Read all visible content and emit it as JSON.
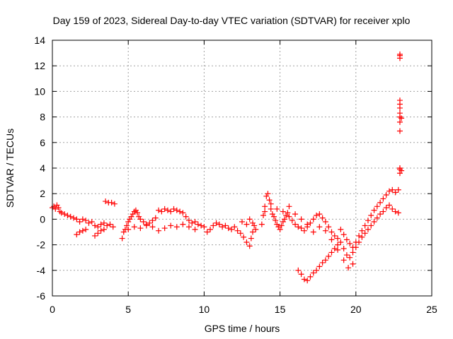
{
  "chart_data": {
    "type": "scatter",
    "title": "Day 159 of 2023, Sidereal Day-to-day VTEC variation (SDTVAR) for receiver xplo",
    "xlabel": "GPS time / hours",
    "ylabel": "SDTVAR / TECUs",
    "xlim": [
      0,
      25
    ],
    "ylim": [
      -6,
      14
    ],
    "xticks": [
      "0",
      "5",
      "10",
      "15",
      "20",
      "25"
    ],
    "yticks": [
      "-6",
      "-4",
      "-2",
      "0",
      "2",
      "4",
      "6",
      "8",
      "10",
      "12",
      "14"
    ],
    "grid": true,
    "marker": "+",
    "color": "#ff0000",
    "series": [
      {
        "name": "SDTVAR",
        "points": [
          [
            0.0,
            0.9
          ],
          [
            0.1,
            1.0
          ],
          [
            0.2,
            0.8
          ],
          [
            0.3,
            1.1
          ],
          [
            0.4,
            0.9
          ],
          [
            0.5,
            0.6
          ],
          [
            0.6,
            0.5
          ],
          [
            0.8,
            0.4
          ],
          [
            1.0,
            0.3
          ],
          [
            1.2,
            0.2
          ],
          [
            1.4,
            0.1
          ],
          [
            1.6,
            0.0
          ],
          [
            1.8,
            -0.2
          ],
          [
            2.0,
            0.0
          ],
          [
            2.2,
            -0.1
          ],
          [
            2.4,
            -0.3
          ],
          [
            2.6,
            -0.2
          ],
          [
            2.8,
            -0.5
          ],
          [
            3.0,
            -0.6
          ],
          [
            3.2,
            -0.4
          ],
          [
            3.4,
            -0.3
          ],
          [
            3.6,
            -0.5
          ],
          [
            3.8,
            -0.4
          ],
          [
            4.0,
            -0.6
          ],
          [
            1.6,
            -1.2
          ],
          [
            1.8,
            -1.0
          ],
          [
            2.0,
            -0.9
          ],
          [
            2.2,
            -0.8
          ],
          [
            2.8,
            -1.3
          ],
          [
            3.0,
            -1.1
          ],
          [
            3.2,
            -0.9
          ],
          [
            3.4,
            -0.8
          ],
          [
            3.5,
            1.4
          ],
          [
            3.7,
            1.3
          ],
          [
            3.9,
            1.3
          ],
          [
            4.1,
            1.2
          ],
          [
            4.6,
            -1.5
          ],
          [
            4.7,
            -1.0
          ],
          [
            4.8,
            -0.8
          ],
          [
            4.9,
            -0.5
          ],
          [
            5.0,
            -0.2
          ],
          [
            5.1,
            0.0
          ],
          [
            5.2,
            0.2
          ],
          [
            5.3,
            0.4
          ],
          [
            5.4,
            0.6
          ],
          [
            5.5,
            0.7
          ],
          [
            5.6,
            0.5
          ],
          [
            5.7,
            0.2
          ],
          [
            5.8,
            0.0
          ],
          [
            6.0,
            -0.2
          ],
          [
            6.2,
            -0.4
          ],
          [
            6.4,
            -0.3
          ],
          [
            6.6,
            -0.1
          ],
          [
            6.8,
            0.1
          ],
          [
            7.0,
            0.7
          ],
          [
            7.2,
            0.6
          ],
          [
            7.4,
            0.8
          ],
          [
            7.6,
            0.7
          ],
          [
            7.8,
            0.6
          ],
          [
            8.0,
            0.8
          ],
          [
            8.2,
            0.7
          ],
          [
            8.4,
            0.6
          ],
          [
            8.6,
            0.5
          ],
          [
            8.8,
            0.2
          ],
          [
            9.0,
            -0.1
          ],
          [
            9.2,
            -0.3
          ],
          [
            9.4,
            -0.2
          ],
          [
            9.6,
            -0.4
          ],
          [
            5.0,
            -0.8
          ],
          [
            5.4,
            -0.6
          ],
          [
            5.8,
            -0.7
          ],
          [
            6.2,
            -0.5
          ],
          [
            6.6,
            -0.6
          ],
          [
            7.0,
            -0.9
          ],
          [
            7.4,
            -0.7
          ],
          [
            7.8,
            -0.5
          ],
          [
            8.2,
            -0.6
          ],
          [
            8.6,
            -0.4
          ],
          [
            9.0,
            -0.6
          ],
          [
            9.4,
            -0.8
          ],
          [
            9.8,
            -0.5
          ],
          [
            10.0,
            -0.6
          ],
          [
            10.2,
            -1.0
          ],
          [
            10.4,
            -0.8
          ],
          [
            10.6,
            -0.5
          ],
          [
            10.8,
            -0.3
          ],
          [
            11.0,
            -0.4
          ],
          [
            11.2,
            -0.6
          ],
          [
            11.4,
            -0.5
          ],
          [
            11.6,
            -0.7
          ],
          [
            11.8,
            -0.8
          ],
          [
            12.0,
            -0.6
          ],
          [
            12.2,
            -0.9
          ],
          [
            12.4,
            -1.1
          ],
          [
            12.6,
            -1.4
          ],
          [
            12.8,
            -1.8
          ],
          [
            13.0,
            -2.1
          ],
          [
            13.1,
            -1.5
          ],
          [
            13.2,
            -1.0
          ],
          [
            13.3,
            -0.5
          ],
          [
            13.4,
            -0.8
          ],
          [
            12.5,
            -0.2
          ],
          [
            12.8,
            -0.4
          ],
          [
            13.0,
            0.0
          ],
          [
            13.2,
            -0.3
          ],
          [
            13.8,
            -0.4
          ],
          [
            13.9,
            0.3
          ],
          [
            14.0,
            1.0
          ],
          [
            14.1,
            1.8
          ],
          [
            14.2,
            2.0
          ],
          [
            14.3,
            1.5
          ],
          [
            14.4,
            0.8
          ],
          [
            14.5,
            0.4
          ],
          [
            14.6,
            0.2
          ],
          [
            14.7,
            -0.1
          ],
          [
            14.8,
            -0.4
          ],
          [
            14.9,
            -0.6
          ],
          [
            15.0,
            -0.8
          ],
          [
            15.1,
            -0.5
          ],
          [
            15.2,
            -0.2
          ],
          [
            15.3,
            0.0
          ],
          [
            15.4,
            0.3
          ],
          [
            15.5,
            0.5
          ],
          [
            15.6,
            0.2
          ],
          [
            15.8,
            -0.1
          ],
          [
            16.0,
            -0.4
          ],
          [
            16.2,
            -0.6
          ],
          [
            16.4,
            -0.7
          ],
          [
            16.6,
            -0.9
          ],
          [
            16.8,
            -0.6
          ],
          [
            17.0,
            -0.3
          ],
          [
            17.2,
            0.0
          ],
          [
            17.4,
            0.3
          ],
          [
            17.6,
            0.4
          ],
          [
            17.8,
            0.1
          ],
          [
            18.0,
            -0.2
          ],
          [
            18.2,
            -0.6
          ],
          [
            18.4,
            -1.0
          ],
          [
            18.6,
            -1.3
          ],
          [
            18.8,
            -1.5
          ],
          [
            19.0,
            -1.8
          ],
          [
            19.2,
            -2.3
          ],
          [
            19.4,
            -2.8
          ],
          [
            19.6,
            -3.0
          ],
          [
            19.8,
            -2.6
          ],
          [
            20.0,
            -2.2
          ],
          [
            20.2,
            -1.8
          ],
          [
            20.4,
            -1.4
          ],
          [
            20.6,
            -1.1
          ],
          [
            20.8,
            -0.8
          ],
          [
            21.0,
            -0.5
          ],
          [
            21.2,
            -0.2
          ],
          [
            21.4,
            0.1
          ],
          [
            21.6,
            0.4
          ],
          [
            21.8,
            0.6
          ],
          [
            22.0,
            0.9
          ],
          [
            22.2,
            1.1
          ],
          [
            22.4,
            0.8
          ],
          [
            22.6,
            0.6
          ],
          [
            22.8,
            0.5
          ],
          [
            14.0,
            0.6
          ],
          [
            14.4,
            1.2
          ],
          [
            14.8,
            0.8
          ],
          [
            15.2,
            0.6
          ],
          [
            15.6,
            1.0
          ],
          [
            16.0,
            0.4
          ],
          [
            16.4,
            0.0
          ],
          [
            16.8,
            -0.4
          ],
          [
            17.2,
            -1.0
          ],
          [
            17.6,
            -0.6
          ],
          [
            18.0,
            -0.9
          ],
          [
            18.4,
            -1.6
          ],
          [
            18.8,
            -2.4
          ],
          [
            19.2,
            -3.2
          ],
          [
            19.5,
            -3.8
          ],
          [
            19.8,
            -3.5
          ],
          [
            16.2,
            -4.0
          ],
          [
            16.4,
            -4.3
          ],
          [
            16.6,
            -4.7
          ],
          [
            16.8,
            -4.8
          ],
          [
            17.0,
            -4.5
          ],
          [
            17.2,
            -4.2
          ],
          [
            17.4,
            -4.0
          ],
          [
            17.6,
            -3.7
          ],
          [
            17.8,
            -3.4
          ],
          [
            18.0,
            -3.2
          ],
          [
            18.2,
            -2.9
          ],
          [
            18.4,
            -2.6
          ],
          [
            18.6,
            -2.3
          ],
          [
            18.8,
            -2.0
          ],
          [
            19.0,
            -0.8
          ],
          [
            19.2,
            -1.2
          ],
          [
            19.4,
            -1.6
          ],
          [
            19.6,
            -1.9
          ],
          [
            19.8,
            -2.2
          ],
          [
            20.0,
            -1.8
          ],
          [
            20.2,
            -1.3
          ],
          [
            20.4,
            -0.9
          ],
          [
            20.6,
            -0.5
          ],
          [
            20.8,
            -0.1
          ],
          [
            21.0,
            0.3
          ],
          [
            21.2,
            0.7
          ],
          [
            21.4,
            1.0
          ],
          [
            21.6,
            1.3
          ],
          [
            21.8,
            1.6
          ],
          [
            22.0,
            1.9
          ],
          [
            22.2,
            2.2
          ],
          [
            22.4,
            2.3
          ],
          [
            22.6,
            2.1
          ],
          [
            22.8,
            2.3
          ],
          [
            22.9,
            3.6
          ],
          [
            22.9,
            3.9
          ],
          [
            22.9,
            4.0
          ],
          [
            23.0,
            3.8
          ],
          [
            22.9,
            6.9
          ],
          [
            22.9,
            7.6
          ],
          [
            22.9,
            8.0
          ],
          [
            22.9,
            8.3
          ],
          [
            22.9,
            8.7
          ],
          [
            22.9,
            9.0
          ],
          [
            22.9,
            9.3
          ],
          [
            23.0,
            7.9
          ],
          [
            22.9,
            12.6
          ],
          [
            22.9,
            12.8
          ],
          [
            22.9,
            12.9
          ]
        ]
      }
    ]
  }
}
